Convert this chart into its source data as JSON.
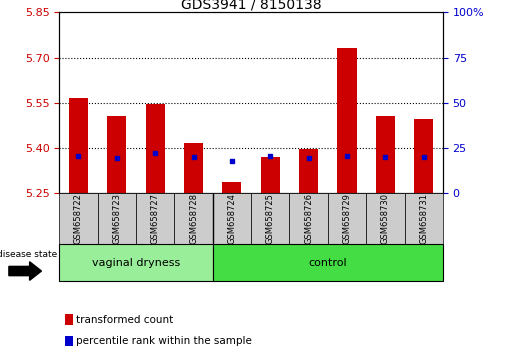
{
  "title": "GDS3941 / 8150138",
  "samples": [
    "GSM658722",
    "GSM658723",
    "GSM658727",
    "GSM658728",
    "GSM658724",
    "GSM658725",
    "GSM658726",
    "GSM658729",
    "GSM658730",
    "GSM658731"
  ],
  "groups": [
    "vaginal dryness",
    "vaginal dryness",
    "vaginal dryness",
    "vaginal dryness",
    "control",
    "control",
    "control",
    "control",
    "control",
    "control"
  ],
  "bar_values": [
    5.565,
    5.505,
    5.545,
    5.415,
    5.285,
    5.37,
    5.395,
    5.73,
    5.505,
    5.495
  ],
  "bar_base": 5.25,
  "blue_values": [
    20.5,
    19.5,
    22.0,
    20.0,
    17.5,
    20.5,
    19.5,
    20.5,
    20.0,
    20.0
  ],
  "ylim_left": [
    5.25,
    5.85
  ],
  "ylim_right": [
    0,
    100
  ],
  "yticks_left": [
    5.25,
    5.4,
    5.55,
    5.7,
    5.85
  ],
  "yticks_right": [
    0,
    25,
    50,
    75,
    100
  ],
  "grid_values": [
    5.4,
    5.55,
    5.7
  ],
  "bar_color": "#cc0000",
  "blue_color": "#0000cc",
  "left_color": "#cc0000",
  "right_color": "#0000cc",
  "legend_items": [
    "transformed count",
    "percentile rank within the sample"
  ],
  "figsize": [
    5.15,
    3.54
  ],
  "dpi": 100,
  "vd_color": "#99ee99",
  "ctrl_color": "#44dd44",
  "gray_color": "#cccccc",
  "vd_count": 4,
  "ctrl_count": 6
}
